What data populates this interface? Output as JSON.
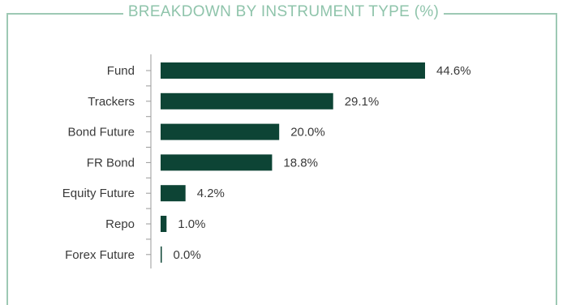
{
  "title": "BREAKDOWN BY INSTRUMENT TYPE (%)",
  "colors": {
    "bar": "#0d4435",
    "frame": "#9dc9b4",
    "title": "#8fc4ab",
    "axis": "#9a9a9a"
  },
  "chart_data": {
    "type": "bar",
    "orientation": "horizontal",
    "title": "BREAKDOWN BY INSTRUMENT TYPE (%)",
    "categories": [
      "Fund",
      "Trackers",
      "Bond Future",
      "FR Bond",
      "Equity Future",
      "Repo",
      "Forex Future"
    ],
    "values": [
      44.6,
      29.1,
      20.0,
      18.8,
      4.2,
      1.0,
      0.0
    ],
    "value_labels": [
      "44.6%",
      "29.1%",
      "20.0%",
      "18.8%",
      "4.2%",
      "1.0%",
      "0.0%"
    ],
    "xlim": [
      0,
      44.6
    ],
    "grid": false,
    "legend": "none"
  }
}
